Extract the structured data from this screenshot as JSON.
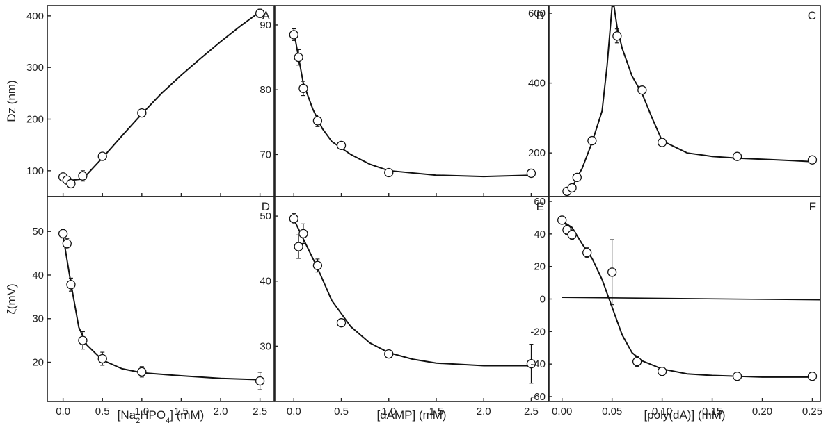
{
  "chart_data": [
    {
      "type": "scatter",
      "panel": "A",
      "x": [
        0,
        0.05,
        0.1,
        0.25,
        0.5,
        1.0,
        2.5
      ],
      "y": [
        88,
        82,
        75,
        90,
        128,
        212,
        405
      ],
      "err": [
        5,
        4,
        5,
        10,
        5,
        5,
        8
      ],
      "fit": [
        [
          0,
          80
        ],
        [
          0.25,
          84
        ],
        [
          0.5,
          125
        ],
        [
          0.75,
          168
        ],
        [
          1.0,
          210
        ],
        [
          1.25,
          250
        ],
        [
          1.5,
          285
        ],
        [
          1.75,
          318
        ],
        [
          2.0,
          350
        ],
        [
          2.25,
          380
        ],
        [
          2.5,
          408
        ]
      ],
      "xlim": [
        -0.2,
        2.68
      ],
      "ylim": [
        50,
        420
      ],
      "xticks": [
        0.0,
        0.5,
        1.0,
        1.5,
        2.0,
        2.5
      ],
      "xtick_labels": [
        "0.0",
        "0.5",
        "1.0",
        "1.5",
        "2.0",
        "2.5"
      ],
      "yticks": [
        100,
        200,
        300,
        400
      ],
      "ytick_labels": [
        "100",
        "200",
        "300",
        "400"
      ],
      "ylabel": "Dz (nm)",
      "xlabel": ""
    },
    {
      "type": "scatter",
      "panel": "B",
      "x": [
        0,
        0.05,
        0.1,
        0.25,
        0.5,
        1.0,
        2.5
      ],
      "y": [
        88.5,
        85,
        80.2,
        75.2,
        71.4,
        67.2,
        67.1
      ],
      "err": [
        0.9,
        1.2,
        1.1,
        0.9,
        0.6,
        0.5,
        0.4
      ],
      "fit": [
        [
          0,
          89
        ],
        [
          0.1,
          81
        ],
        [
          0.2,
          77
        ],
        [
          0.3,
          74
        ],
        [
          0.4,
          72
        ],
        [
          0.6,
          70
        ],
        [
          0.8,
          68.5
        ],
        [
          1.0,
          67.5
        ],
        [
          1.5,
          66.8
        ],
        [
          2.0,
          66.6
        ],
        [
          2.5,
          66.8
        ]
      ],
      "xlim": [
        -0.2,
        2.68
      ],
      "ylim": [
        63.5,
        93
      ],
      "xticks": [
        0.0,
        0.5,
        1.0,
        1.5,
        2.0,
        2.5
      ],
      "xtick_labels": [
        "0.0",
        "0.5",
        "1.0",
        "1.5",
        "2.0",
        "2.5"
      ],
      "yticks": [
        70,
        80,
        90
      ],
      "ytick_labels": [
        "70",
        "80",
        "90"
      ],
      "ylabel": "",
      "xlabel": ""
    },
    {
      "type": "scatter",
      "panel": "C",
      "x": [
        0.005,
        0.01,
        0.015,
        0.03,
        0.055,
        0.08,
        0.1,
        0.175,
        0.25
      ],
      "y": [
        90,
        100,
        130,
        235,
        535,
        380,
        230,
        190,
        180
      ],
      "err": [
        8,
        8,
        8,
        10,
        20,
        8,
        6,
        5,
        5
      ],
      "fit": [
        [
          0.005,
          80
        ],
        [
          0.01,
          100
        ],
        [
          0.015,
          130
        ],
        [
          0.02,
          155
        ],
        [
          0.03,
          230
        ],
        [
          0.04,
          320
        ],
        [
          0.045,
          450
        ],
        [
          0.05,
          620
        ],
        [
          0.052,
          620
        ],
        [
          0.055,
          560
        ],
        [
          0.06,
          500
        ],
        [
          0.07,
          420
        ],
        [
          0.08,
          370
        ],
        [
          0.09,
          300
        ],
        [
          0.1,
          235
        ],
        [
          0.125,
          200
        ],
        [
          0.15,
          190
        ],
        [
          0.175,
          185
        ],
        [
          0.2,
          182
        ],
        [
          0.25,
          175
        ]
      ],
      "xlim": [
        -0.013,
        0.258
      ],
      "ylim": [
        75,
        622
      ],
      "xticks": [],
      "xtick_labels": [],
      "yticks": [
        200,
        400,
        600
      ],
      "ytick_labels": [
        "200",
        "400",
        "600"
      ],
      "ylabel": "",
      "xlabel": ""
    },
    {
      "type": "scatter",
      "panel": "D",
      "x": [
        0,
        0.05,
        0.1,
        0.25,
        0.5,
        1.0,
        2.5
      ],
      "y": [
        49.5,
        47.2,
        37.8,
        25.0,
        20.8,
        17.8,
        15.7
      ],
      "err": [
        1.0,
        1.2,
        1.5,
        2.0,
        1.5,
        1.2,
        2.0
      ],
      "fit": [
        [
          0,
          49
        ],
        [
          0.1,
          38
        ],
        [
          0.2,
          28
        ],
        [
          0.3,
          24
        ],
        [
          0.5,
          20.5
        ],
        [
          0.75,
          18.5
        ],
        [
          1.0,
          17.6
        ],
        [
          1.5,
          16.9
        ],
        [
          2.0,
          16.3
        ],
        [
          2.5,
          16
        ]
      ],
      "xlim": [
        -0.2,
        2.68
      ],
      "ylim": [
        11,
        58
      ],
      "xticks": [
        0.0,
        0.5,
        1.0,
        1.5,
        2.0,
        2.5
      ],
      "xtick_labels": [
        "0.0",
        "0.5",
        "1.0",
        "1.5",
        "2.0",
        "2.5"
      ],
      "yticks": [
        20,
        30,
        40,
        50
      ],
      "ytick_labels": [
        "20",
        "30",
        "40",
        "50"
      ],
      "ylabel": "ζ(mV)",
      "xlabel": "[Na₂HPO₄] (mM)"
    },
    {
      "type": "scatter",
      "panel": "E",
      "x": [
        0,
        0.05,
        0.1,
        0.25,
        0.5,
        1.0,
        2.5
      ],
      "y": [
        49.6,
        45.3,
        47.3,
        42.4,
        33.6,
        28.8,
        27.3
      ],
      "err": [
        0.8,
        1.8,
        1.5,
        1.0,
        0.6,
        0.6,
        3.0
      ],
      "fit": [
        [
          0,
          49.5
        ],
        [
          0.1,
          46.5
        ],
        [
          0.25,
          42
        ],
        [
          0.4,
          37
        ],
        [
          0.6,
          33
        ],
        [
          0.8,
          30.5
        ],
        [
          1.0,
          29
        ],
        [
          1.25,
          28
        ],
        [
          1.5,
          27.4
        ],
        [
          2.0,
          27
        ],
        [
          2.5,
          27
        ]
      ],
      "xlim": [
        -0.2,
        2.68
      ],
      "ylim": [
        21.5,
        53
      ],
      "xticks": [
        0.0,
        0.5,
        1.0,
        1.5,
        2.0,
        2.5
      ],
      "xtick_labels": [
        "0.0",
        "0.5",
        "1.0",
        "1.5",
        "2.0",
        "2.5"
      ],
      "yticks": [
        30,
        40,
        50
      ],
      "ytick_labels": [
        "30",
        "40",
        "50"
      ],
      "ylabel": "",
      "xlabel": "[dAMP] (mM)"
    },
    {
      "type": "scatter",
      "panel": "F",
      "x": [
        0,
        0.005,
        0.01,
        0.025,
        0.05,
        0.075,
        0.1,
        0.175,
        0.25
      ],
      "y": [
        48.5,
        42.5,
        39.5,
        28.5,
        16.5,
        -38.5,
        -44.5,
        -47.5,
        -47.5
      ],
      "err": [
        2,
        3,
        3,
        3,
        20,
        3,
        2,
        2,
        2
      ],
      "fit": [
        [
          0,
          48
        ],
        [
          0.01,
          44
        ],
        [
          0.02,
          34
        ],
        [
          0.03,
          25
        ],
        [
          0.04,
          12
        ],
        [
          0.05,
          -5
        ],
        [
          0.06,
          -22
        ],
        [
          0.07,
          -33
        ],
        [
          0.08,
          -38
        ],
        [
          0.1,
          -43
        ],
        [
          0.125,
          -46
        ],
        [
          0.15,
          -47
        ],
        [
          0.2,
          -48
        ],
        [
          0.25,
          -48
        ]
      ],
      "ref_line": [
        [
          0,
          1
        ],
        [
          0.258,
          -0.5
        ]
      ],
      "xlim": [
        -0.013,
        0.258
      ],
      "ylim": [
        -63,
        63
      ],
      "xticks": [
        0.0,
        0.05,
        0.1,
        0.15,
        0.2,
        0.25
      ],
      "xtick_labels": [
        "0.00",
        "0.05",
        "0.10",
        "0.15",
        "0.20",
        "0.25"
      ],
      "yticks": [
        -60,
        -40,
        -20,
        0,
        20,
        40,
        60
      ],
      "ytick_labels": [
        "-60",
        "-40",
        "-20",
        "0",
        "20",
        "40",
        "60"
      ],
      "ylabel": "",
      "xlabel": "[poly(dA)] (mM)"
    }
  ]
}
